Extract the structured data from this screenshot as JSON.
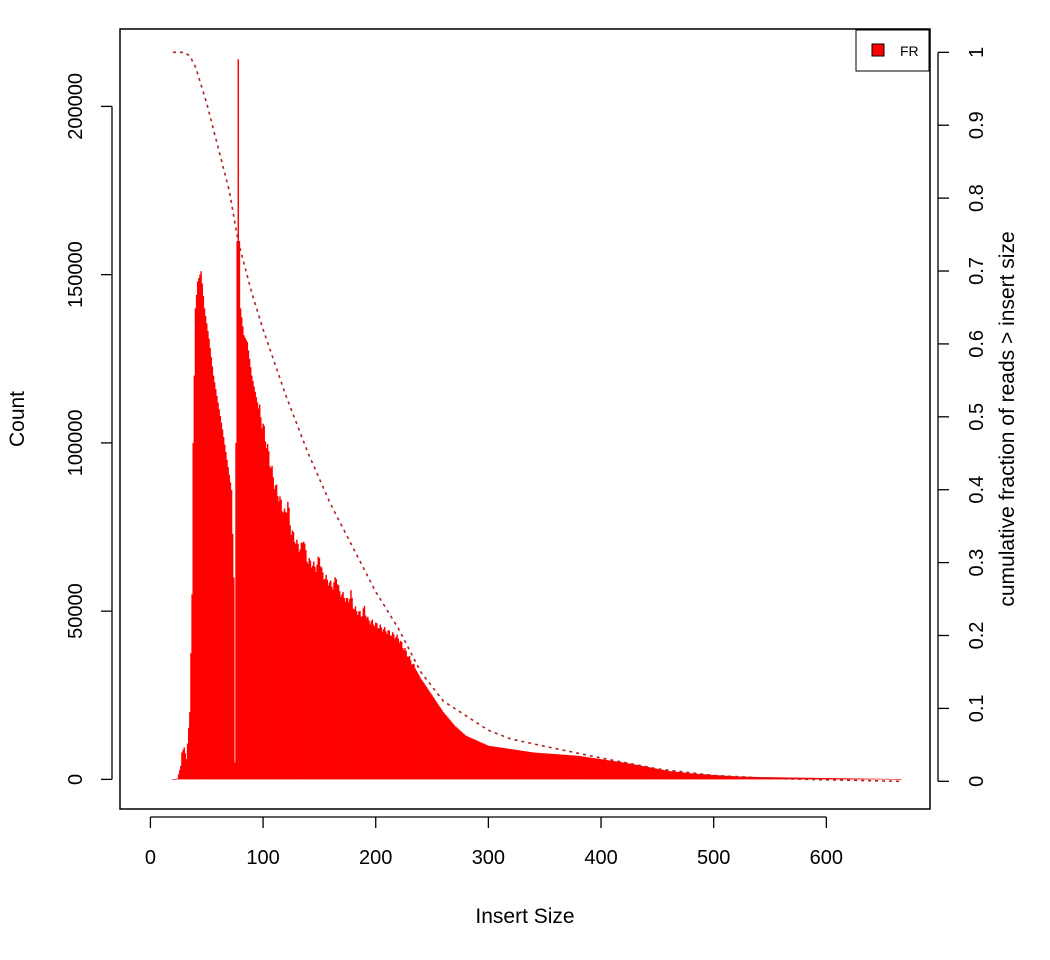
{
  "chart_data": {
    "type": "bar",
    "title": "",
    "xlabel": "Insert Size",
    "ylabel": "Count",
    "y2label": "cumulative fraction of reads > insert size",
    "xlim": [
      -27,
      692
    ],
    "ylim": [
      -8800,
      223000
    ],
    "y2lim": [
      -0.038,
      1.032
    ],
    "xticks": [
      0,
      100,
      200,
      300,
      400,
      500,
      600
    ],
    "yticks": [
      0,
      50000,
      100000,
      150000,
      200000
    ],
    "y2ticks": [
      0,
      0.1,
      0.2,
      0.3,
      0.4,
      0.5,
      0.6,
      0.7,
      0.8,
      0.9,
      1
    ],
    "legend_position": "top-right",
    "grid": false,
    "series": [
      {
        "name": "FR",
        "kind": "histogram",
        "color": "#ff0000",
        "x_start": 20,
        "x_end": 666,
        "anchors": [
          [
            20,
            0
          ],
          [
            24,
            200
          ],
          [
            27,
            4000
          ],
          [
            28,
            8000
          ],
          [
            30,
            9500
          ],
          [
            32,
            6000
          ],
          [
            35,
            20000
          ],
          [
            37,
            55000
          ],
          [
            38,
            100000
          ],
          [
            40,
            140000
          ],
          [
            42,
            148000
          ],
          [
            45,
            151000
          ],
          [
            48,
            140000
          ],
          [
            52,
            131000
          ],
          [
            56,
            120000
          ],
          [
            60,
            112000
          ],
          [
            64,
            104000
          ],
          [
            68,
            95000
          ],
          [
            72,
            86000
          ],
          [
            74,
            60000
          ],
          [
            75,
            5000
          ],
          [
            76,
            100000
          ],
          [
            77,
            160000
          ],
          [
            78,
            214000
          ],
          [
            79,
            160000
          ],
          [
            80,
            140000
          ],
          [
            83,
            132000
          ],
          [
            86,
            130000
          ],
          [
            90,
            120000
          ],
          [
            95,
            112000
          ],
          [
            100,
            105000
          ],
          [
            110,
            88000
          ],
          [
            120,
            78000
          ],
          [
            130,
            70000
          ],
          [
            140,
            65000
          ],
          [
            150,
            62000
          ],
          [
            160,
            58000
          ],
          [
            170,
            55000
          ],
          [
            180,
            51000
          ],
          [
            190,
            48000
          ],
          [
            200,
            46000
          ],
          [
            210,
            44000
          ],
          [
            220,
            42000
          ],
          [
            230,
            36000
          ],
          [
            240,
            30000
          ],
          [
            250,
            25000
          ],
          [
            260,
            20000
          ],
          [
            270,
            16000
          ],
          [
            280,
            13000
          ],
          [
            290,
            11500
          ],
          [
            300,
            10000
          ],
          [
            320,
            9000
          ],
          [
            340,
            8000
          ],
          [
            360,
            7500
          ],
          [
            380,
            7000
          ],
          [
            400,
            6000
          ],
          [
            420,
            5000
          ],
          [
            440,
            3800
          ],
          [
            460,
            2500
          ],
          [
            480,
            1800
          ],
          [
            500,
            1300
          ],
          [
            520,
            900
          ],
          [
            540,
            700
          ],
          [
            560,
            600
          ],
          [
            600,
            400
          ],
          [
            640,
            200
          ],
          [
            666,
            100
          ]
        ],
        "ripples": [
          [
            122,
            6000
          ],
          [
            136,
            5000
          ],
          [
            150,
            4500
          ],
          [
            165,
            4000
          ],
          [
            178,
            3500
          ],
          [
            190,
            3000
          ]
        ]
      },
      {
        "name": "cumulative",
        "kind": "line",
        "style": "dotted",
        "axis": "right",
        "color": "#b22222",
        "points": [
          [
            20,
            1.0
          ],
          [
            30,
            1.0
          ],
          [
            35,
            0.995
          ],
          [
            40,
            0.98
          ],
          [
            50,
            0.93
          ],
          [
            60,
            0.87
          ],
          [
            70,
            0.81
          ],
          [
            78,
            0.74
          ],
          [
            90,
            0.67
          ],
          [
            100,
            0.62
          ],
          [
            120,
            0.53
          ],
          [
            140,
            0.45
          ],
          [
            160,
            0.38
          ],
          [
            180,
            0.32
          ],
          [
            200,
            0.26
          ],
          [
            220,
            0.21
          ],
          [
            240,
            0.15
          ],
          [
            260,
            0.11
          ],
          [
            280,
            0.09
          ],
          [
            300,
            0.07
          ],
          [
            320,
            0.058
          ],
          [
            350,
            0.048
          ],
          [
            400,
            0.032
          ],
          [
            450,
            0.017
          ],
          [
            500,
            0.008
          ],
          [
            550,
            0.004
          ],
          [
            600,
            0.002
          ],
          [
            666,
            0.0
          ]
        ]
      }
    ]
  }
}
